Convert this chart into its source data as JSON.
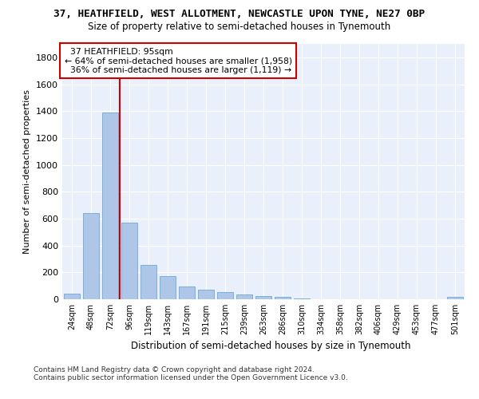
{
  "title_line1": "37, HEATHFIELD, WEST ALLOTMENT, NEWCASTLE UPON TYNE, NE27 0BP",
  "title_line2": "Size of property relative to semi-detached houses in Tynemouth",
  "xlabel": "Distribution of semi-detached houses by size in Tynemouth",
  "ylabel": "Number of semi-detached properties",
  "categories": [
    "24sqm",
    "48sqm",
    "72sqm",
    "96sqm",
    "119sqm",
    "143sqm",
    "167sqm",
    "191sqm",
    "215sqm",
    "239sqm",
    "263sqm",
    "286sqm",
    "310sqm",
    "334sqm",
    "358sqm",
    "382sqm",
    "406sqm",
    "429sqm",
    "453sqm",
    "477sqm",
    "501sqm"
  ],
  "values": [
    40,
    640,
    1390,
    570,
    255,
    175,
    95,
    70,
    55,
    35,
    25,
    18,
    5,
    0,
    0,
    0,
    0,
    0,
    0,
    0,
    20
  ],
  "bar_color": "#aec6e8",
  "bar_edge_color": "#5a9fd4",
  "vline_color": "#cc0000",
  "pct_smaller": 64,
  "n_smaller": "1,958",
  "pct_larger": 36,
  "n_larger": "1,119",
  "annotation_label": "37 HEATHFIELD: 95sqm",
  "annotation_box_color": "#ffffff",
  "annotation_border_color": "#cc0000",
  "ylim": [
    0,
    1900
  ],
  "yticks": [
    0,
    200,
    400,
    600,
    800,
    1000,
    1200,
    1400,
    1600,
    1800
  ],
  "bg_color": "#eaf0fb",
  "footer_line1": "Contains HM Land Registry data © Crown copyright and database right 2024.",
  "footer_line2": "Contains public sector information licensed under the Open Government Licence v3.0."
}
